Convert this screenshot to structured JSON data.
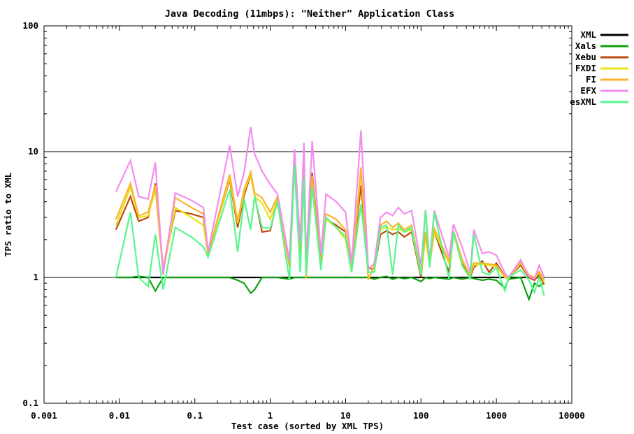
{
  "title": "Java Decoding (11mbps): \"Neither\" Application Class",
  "axes": {
    "xlabel": "Test case (sorted by XML TPS)",
    "ylabel": "TPS ratio to XML",
    "x_ticks": [
      {
        "v": 0.001,
        "label": "0.001"
      },
      {
        "v": 0.01,
        "label": "0.01"
      },
      {
        "v": 0.1,
        "label": "0.1"
      },
      {
        "v": 1,
        "label": "1"
      },
      {
        "v": 10,
        "label": "10"
      },
      {
        "v": 100,
        "label": "100"
      },
      {
        "v": 1000,
        "label": "1000"
      },
      {
        "v": 10000,
        "label": "10000"
      }
    ],
    "y_ticks": [
      {
        "v": 0.1,
        "label": "0.1"
      },
      {
        "v": 1,
        "label": "1"
      },
      {
        "v": 10,
        "label": "10"
      },
      {
        "v": 100,
        "label": "100"
      }
    ],
    "gridlines_y": [
      1,
      10
    ]
  },
  "chart_data": {
    "type": "line",
    "title": "Java Decoding (11mbps): \"Neither\" Application Class",
    "xlabel": "Test case (sorted by XML TPS)",
    "ylabel": "TPS ratio to XML",
    "x_scale": "log",
    "y_scale": "log",
    "xlim": [
      0.001,
      10000
    ],
    "ylim": [
      0.1,
      100
    ],
    "grid_y_at": [
      1,
      10
    ],
    "legend_position": "outside-top-right",
    "x": [
      0.009,
      0.014,
      0.018,
      0.024,
      0.03,
      0.038,
      0.055,
      0.09,
      0.13,
      0.15,
      0.29,
      0.37,
      0.45,
      0.55,
      0.62,
      0.78,
      1.0,
      1.25,
      1.8,
      2.1,
      2.5,
      2.8,
      3.0,
      3.6,
      4.7,
      5.5,
      7.5,
      10,
      12,
      16,
      20,
      24,
      29,
      35,
      42,
      50,
      60,
      75,
      100,
      115,
      130,
      150,
      235,
      270,
      350,
      450,
      500,
      650,
      800,
      1000,
      1300,
      1450,
      2100,
      2700,
      3200,
      3700,
      4300
    ],
    "series": [
      {
        "name": "XML",
        "color": "#000000",
        "values": [
          1,
          1,
          1,
          1,
          1,
          1,
          1,
          1,
          1,
          1,
          1,
          1,
          1,
          1,
          1,
          1,
          1,
          1,
          1,
          1,
          1,
          1,
          1,
          1,
          1,
          1,
          1,
          1,
          1,
          1,
          1,
          1,
          1,
          1,
          1,
          1,
          1,
          1,
          1,
          1,
          1,
          1,
          1,
          1,
          1,
          1,
          1,
          1,
          1,
          1,
          1,
          1,
          1,
          1,
          1,
          1,
          1
        ]
      },
      {
        "name": "Xals",
        "color": "#0da10d",
        "values": [
          1.0,
          1.0,
          1.02,
          1.0,
          0.78,
          1.0,
          1.0,
          1.0,
          1.0,
          1.0,
          1.0,
          0.95,
          0.9,
          0.75,
          0.8,
          1.0,
          1.0,
          1.0,
          0.97,
          1.0,
          1.0,
          1.0,
          1.0,
          1.0,
          1.0,
          1.0,
          1.0,
          1.0,
          1.0,
          1.0,
          1.0,
          0.97,
          1.0,
          1.02,
          0.97,
          1.0,
          0.98,
          1.0,
          0.93,
          1.0,
          0.98,
          1.0,
          0.97,
          1.0,
          0.97,
          1.0,
          0.98,
          0.95,
          0.97,
          0.95,
          0.82,
          0.97,
          1.0,
          0.67,
          0.9,
          0.85,
          0.9
        ]
      },
      {
        "name": "Xebu",
        "color": "#bc4a0e",
        "values": [
          2.4,
          4.4,
          2.8,
          3.0,
          5.6,
          1.15,
          3.4,
          3.2,
          3.0,
          1.55,
          6.0,
          2.5,
          4.5,
          6.5,
          4.5,
          2.3,
          2.35,
          4.2,
          1.3,
          8.4,
          1.3,
          7.2,
          1.25,
          6.8,
          1.3,
          2.9,
          2.6,
          2.3,
          1.2,
          5.4,
          1.2,
          1.15,
          2.2,
          2.35,
          2.2,
          2.3,
          2.1,
          2.3,
          1.0,
          2.25,
          1.25,
          2.3,
          1.1,
          2.3,
          1.3,
          1.0,
          1.2,
          1.35,
          1.1,
          1.3,
          1.02,
          1.0,
          1.25,
          1.0,
          0.95,
          1.05,
          0.88
        ]
      },
      {
        "name": "FXDI",
        "color": "#e8e417",
        "values": [
          2.6,
          5.2,
          3.0,
          3.1,
          5.0,
          1.1,
          3.6,
          3.0,
          2.6,
          1.5,
          6.2,
          2.7,
          4.8,
          6.6,
          4.4,
          3.9,
          2.9,
          4.2,
          1.25,
          7.6,
          1.2,
          6.6,
          1.1,
          5.6,
          1.2,
          2.9,
          2.5,
          2.0,
          1.1,
          7.0,
          0.98,
          1.2,
          2.4,
          2.5,
          2.4,
          2.45,
          2.3,
          2.4,
          1.05,
          2.1,
          1.25,
          2.3,
          1.3,
          2.2,
          1.35,
          1.05,
          1.25,
          1.28,
          1.25,
          1.22,
          1.0,
          0.98,
          1.3,
          1.02,
          0.98,
          1.1,
          0.92
        ]
      },
      {
        "name": "FI",
        "color": "#fbb42c",
        "values": [
          2.9,
          5.6,
          3.1,
          3.3,
          5.4,
          1.15,
          4.3,
          3.6,
          3.2,
          1.55,
          6.6,
          2.8,
          5.0,
          6.9,
          4.7,
          4.3,
          3.3,
          4.4,
          1.2,
          8.0,
          1.25,
          7.0,
          0.98,
          6.4,
          1.25,
          3.2,
          2.9,
          2.4,
          1.15,
          7.5,
          0.96,
          1.25,
          2.6,
          2.8,
          2.5,
          2.7,
          2.4,
          2.6,
          1.1,
          2.3,
          1.3,
          2.45,
          1.35,
          2.35,
          1.4,
          1.02,
          1.3,
          1.3,
          1.28,
          1.25,
          1.02,
          1.0,
          1.32,
          1.05,
          1.0,
          1.12,
          0.95
        ]
      },
      {
        "name": "EFX",
        "color": "#f48cf0",
        "values": [
          4.8,
          8.5,
          4.4,
          4.2,
          8.2,
          1.05,
          4.7,
          4.1,
          3.6,
          1.6,
          11.2,
          4.4,
          6.8,
          15.7,
          9.6,
          7.0,
          5.5,
          4.6,
          1.35,
          10.5,
          1.9,
          11.8,
          1.35,
          12.1,
          1.55,
          4.6,
          4.0,
          3.3,
          1.3,
          14.8,
          1.15,
          1.3,
          3.0,
          3.3,
          3.1,
          3.6,
          3.2,
          3.4,
          1.25,
          3.45,
          1.35,
          3.4,
          1.45,
          2.65,
          1.75,
          1.1,
          2.4,
          1.55,
          1.6,
          1.5,
          1.08,
          1.0,
          1.38,
          1.02,
          0.98,
          1.25,
          1.0
        ]
      },
      {
        "name": "esXML",
        "color": "#57f78c",
        "values": [
          1.0,
          3.3,
          1.0,
          0.85,
          2.2,
          0.8,
          2.5,
          2.1,
          1.75,
          1.45,
          5.0,
          1.6,
          4.2,
          2.4,
          4.4,
          2.5,
          2.45,
          4.0,
          0.95,
          7.8,
          1.1,
          6.2,
          1.05,
          5.3,
          1.15,
          3.0,
          2.5,
          2.1,
          1.1,
          3.8,
          1.1,
          1.1,
          2.5,
          2.6,
          1.05,
          2.6,
          2.3,
          2.5,
          1.05,
          3.4,
          1.2,
          3.3,
          0.98,
          2.3,
          1.25,
          0.98,
          2.2,
          1.1,
          1.05,
          1.2,
          0.78,
          1.0,
          1.15,
          0.95,
          0.76,
          1.0,
          0.72
        ]
      }
    ]
  }
}
